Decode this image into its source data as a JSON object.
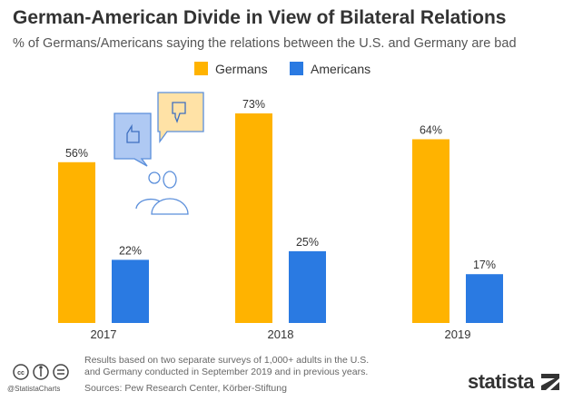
{
  "title": "German-American Divide in View of Bilateral Relations",
  "subtitle": "% of Germans/Americans saying the relations between the U.S. and Germany are bad",
  "chart_data": {
    "type": "bar",
    "categories": [
      "2017",
      "2018",
      "2019"
    ],
    "series": [
      {
        "name": "Germans",
        "values": [
          56,
          73,
          64
        ],
        "labels": [
          "56%",
          "73%",
          "64%"
        ],
        "color": "#FFB300"
      },
      {
        "name": "Americans",
        "values": [
          22,
          25,
          17
        ],
        "labels": [
          "22%",
          "25%",
          "17%"
        ],
        "color": "#2A7AE2"
      }
    ],
    "ylim": [
      0,
      80
    ],
    "legend": "top-center",
    "grid": false
  },
  "footer": {
    "notes_line1": "Results based on two separate surveys of 1,000+ adults in the U.S.",
    "notes_line2": "and Germany conducted in September 2019 and in previous years.",
    "sources": "Sources: Pew Research Center, Körber-Stiftung",
    "handle": "@StatistaCharts",
    "logo": "statista"
  },
  "icons": [
    "thumbs-up-speech-bubble-icon",
    "thumbs-down-speech-bubble-icon",
    "people-icon",
    "creative-commons-icon"
  ]
}
